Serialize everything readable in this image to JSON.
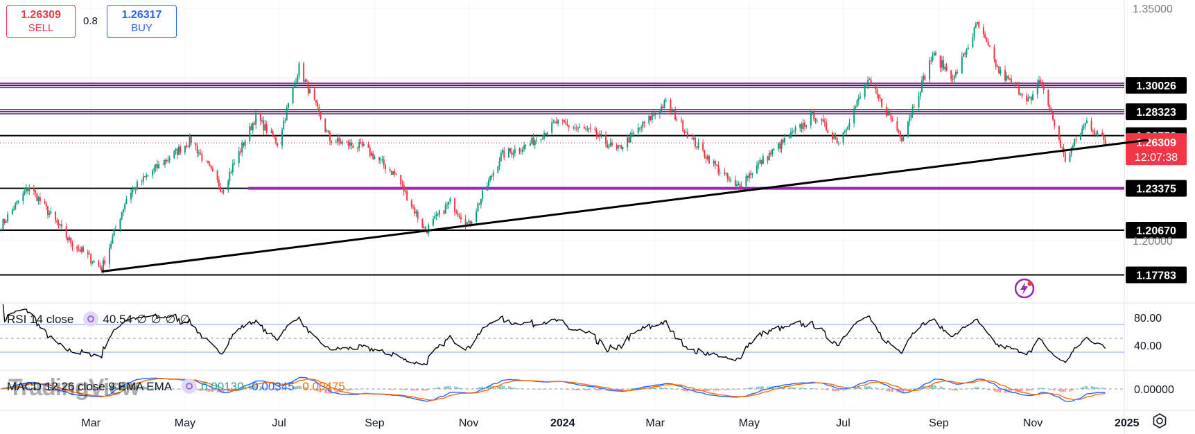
{
  "trade": {
    "sell_price": "1.26309",
    "sell_label": "SELL",
    "buy_price": "1.26317",
    "buy_label": "BUY",
    "spread": "0.8"
  },
  "colors": {
    "sell": "#f23645",
    "buy": "#2962ff",
    "purple_level": "#9c27b0",
    "black_level": "#000000",
    "up_candle": "#089981",
    "down_candle": "#f23645",
    "rsi_line": "#000000",
    "macd_line": "#2962ff",
    "signal_line": "#ff6d00"
  },
  "indicators": {
    "rsi": {
      "label": "RSI 14 close",
      "value": "40.54",
      "extra": [
        "∅",
        "∅",
        "∅",
        "∅"
      ]
    },
    "macd": {
      "label": "MACD 12 26 close 9 EMA EMA",
      "hist": "0.00130",
      "macd": "-0.00345",
      "signal": "-0.00475"
    }
  },
  "watermark": "TradingView",
  "chart_data": {
    "type": "candlestick",
    "symbol_price": "1.26309",
    "countdown": "12:07:38",
    "ylim": [
      1.16,
      1.36
    ],
    "price_ticks": [
      "1.35000",
      "1.20000"
    ],
    "x_ticks": [
      "Mar",
      "May",
      "Jul",
      "Sep",
      "Nov",
      "2024",
      "Mar",
      "May",
      "Jul",
      "Sep",
      "Nov",
      "2025"
    ],
    "levels": [
      {
        "value": "1.30026",
        "color": "#9c27b0"
      },
      {
        "value": "1.28323",
        "color": "#9c27b0"
      },
      {
        "value": "1.26778",
        "color": "#000000"
      },
      {
        "value": "1.23375",
        "color": "#9c27b0"
      },
      {
        "value": "1.20670",
        "color": "#000000"
      },
      {
        "value": "1.17783",
        "color": "#000000"
      }
    ],
    "trendline": {
      "from": {
        "date": "2023-03-08",
        "price": 1.18
      },
      "to": {
        "date": "2025-01-15",
        "price": 1.265
      }
    },
    "price_anchors": [
      [
        "2023-01-02",
        1.21
      ],
      [
        "2023-01-20",
        1.235
      ],
      [
        "2023-02-15",
        1.2
      ],
      [
        "2023-03-08",
        1.182
      ],
      [
        "2023-03-25",
        1.23
      ],
      [
        "2023-04-10",
        1.245
      ],
      [
        "2023-05-05",
        1.265
      ],
      [
        "2023-05-25",
        1.233
      ],
      [
        "2023-06-16",
        1.28
      ],
      [
        "2023-06-30",
        1.263
      ],
      [
        "2023-07-14",
        1.312
      ],
      [
        "2023-08-03",
        1.265
      ],
      [
        "2023-08-25",
        1.26
      ],
      [
        "2023-09-15",
        1.242
      ],
      [
        "2023-10-04",
        1.206
      ],
      [
        "2023-10-20",
        1.225
      ],
      [
        "2023-11-01",
        1.21
      ],
      [
        "2023-11-22",
        1.255
      ],
      [
        "2023-12-10",
        1.262
      ],
      [
        "2023-12-28",
        1.276
      ],
      [
        "2024-01-20",
        1.27
      ],
      [
        "2024-02-05",
        1.258
      ],
      [
        "2024-03-08",
        1.289
      ],
      [
        "2024-03-25",
        1.265
      ],
      [
        "2024-04-22",
        1.234
      ],
      [
        "2024-05-10",
        1.252
      ],
      [
        "2024-06-12",
        1.281
      ],
      [
        "2024-06-28",
        1.264
      ],
      [
        "2024-07-17",
        1.303
      ],
      [
        "2024-08-08",
        1.267
      ],
      [
        "2024-08-28",
        1.32
      ],
      [
        "2024-09-11",
        1.305
      ],
      [
        "2024-09-26",
        1.34
      ],
      [
        "2024-10-10",
        1.309
      ],
      [
        "2024-10-31",
        1.29
      ],
      [
        "2024-11-06",
        1.304
      ],
      [
        "2024-11-22",
        1.252
      ],
      [
        "2024-12-06",
        1.277
      ],
      [
        "2024-12-18",
        1.263
      ]
    ],
    "rsi_ylim": [
      0,
      100
    ],
    "rsi_ticks": [
      "80.00",
      "40.00"
    ],
    "rsi_bands": [
      70,
      30
    ],
    "macd_ticks": [
      "0.00000"
    ]
  }
}
